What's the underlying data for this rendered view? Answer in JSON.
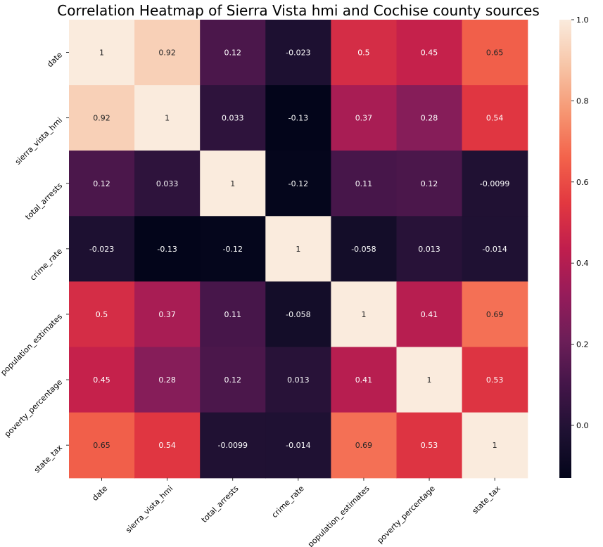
{
  "chart_data": {
    "type": "heatmap",
    "title": "Correlation Heatmap of Sierra Vista hmi and Cochise county sources",
    "x_labels": [
      "date",
      "sierra_vista_hmi",
      "total_arrests",
      "crime_rate",
      "population_estimates",
      "poverty_percentage",
      "state_tax"
    ],
    "y_labels": [
      "date",
      "sierra_vista_hmi",
      "total_arrests",
      "crime_rate",
      "population_estimates",
      "poverty_percentage",
      "state_tax"
    ],
    "values": [
      [
        1,
        0.92,
        0.12,
        -0.023,
        0.5,
        0.45,
        0.65
      ],
      [
        0.92,
        1,
        0.033,
        -0.13,
        0.37,
        0.28,
        0.54
      ],
      [
        0.12,
        0.033,
        1,
        -0.12,
        0.11,
        0.12,
        -0.0099
      ],
      [
        -0.023,
        -0.13,
        -0.12,
        1,
        -0.058,
        0.013,
        -0.014
      ],
      [
        0.5,
        0.37,
        0.11,
        -0.058,
        1,
        0.41,
        0.69
      ],
      [
        0.45,
        0.28,
        0.12,
        0.013,
        0.41,
        1,
        0.53
      ],
      [
        0.65,
        0.54,
        -0.0099,
        -0.014,
        0.69,
        0.53,
        1
      ]
    ],
    "annotations": [
      [
        "1",
        "0.92",
        "0.12",
        "-0.023",
        "0.5",
        "0.45",
        "0.65"
      ],
      [
        "0.92",
        "1",
        "0.033",
        "-0.13",
        "0.37",
        "0.28",
        "0.54"
      ],
      [
        "0.12",
        "0.033",
        "1",
        "-0.12",
        "0.11",
        "0.12",
        "-0.0099"
      ],
      [
        "-0.023",
        "-0.13",
        "-0.12",
        "1",
        "-0.058",
        "0.013",
        "-0.014"
      ],
      [
        "0.5",
        "0.37",
        "0.11",
        "-0.058",
        "1",
        "0.41",
        "0.69"
      ],
      [
        "0.45",
        "0.28",
        "0.12",
        "0.013",
        "0.41",
        "1",
        "0.53"
      ],
      [
        "0.65",
        "0.54",
        "-0.0099",
        "-0.014",
        "0.69",
        "0.53",
        "1"
      ]
    ],
    "colorbar": {
      "range": [
        -0.13,
        1
      ],
      "ticks": [
        0.0,
        0.2,
        0.4,
        0.6,
        0.8,
        1.0
      ],
      "tick_labels": [
        "0.0",
        "0.2",
        "0.4",
        "0.6",
        "0.8",
        "1.0"
      ],
      "colormap": "rocket"
    },
    "grid": false,
    "legend": "colorbar-right"
  }
}
